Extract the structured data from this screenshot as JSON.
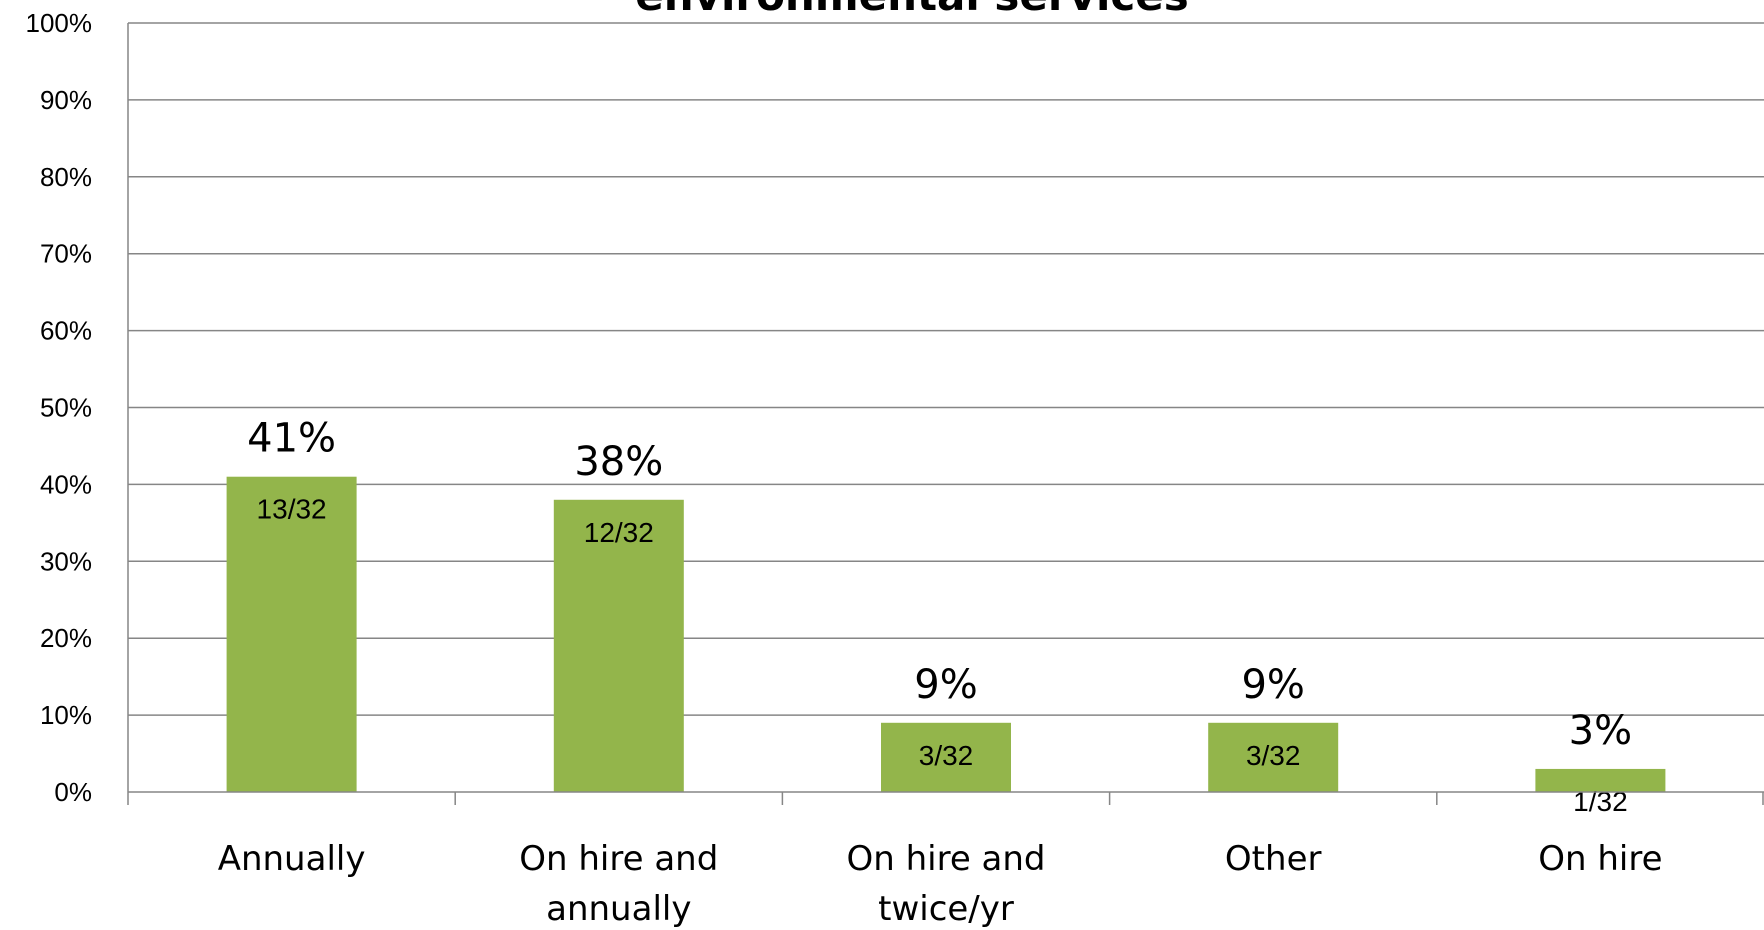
{
  "chart_data": {
    "type": "bar",
    "title": "environmental services",
    "categories": [
      "Annually",
      "On hire and annually",
      "On hire and twice/yr",
      "Other",
      "On hire"
    ],
    "category_lines": [
      [
        "Annually"
      ],
      [
        "On hire and",
        "annually"
      ],
      [
        "On hire and",
        "twice/yr"
      ],
      [
        "Other"
      ],
      [
        "On hire"
      ]
    ],
    "values": [
      41,
      38,
      9,
      9,
      3
    ],
    "value_labels": [
      "41%",
      "38%",
      "9%",
      "9%",
      "3%"
    ],
    "count_labels": [
      "13/32",
      "12/32",
      "3/32",
      "3/32",
      "1/32"
    ],
    "xlabel": "",
    "ylabel": "",
    "ylim": [
      0,
      100
    ],
    "yticks": [
      "0%",
      "10%",
      "20%",
      "30%",
      "40%",
      "50%",
      "60%",
      "70%",
      "80%",
      "90%",
      "100%"
    ],
    "grid": true,
    "bar_color": "#93b54b",
    "grid_color": "#868686"
  }
}
